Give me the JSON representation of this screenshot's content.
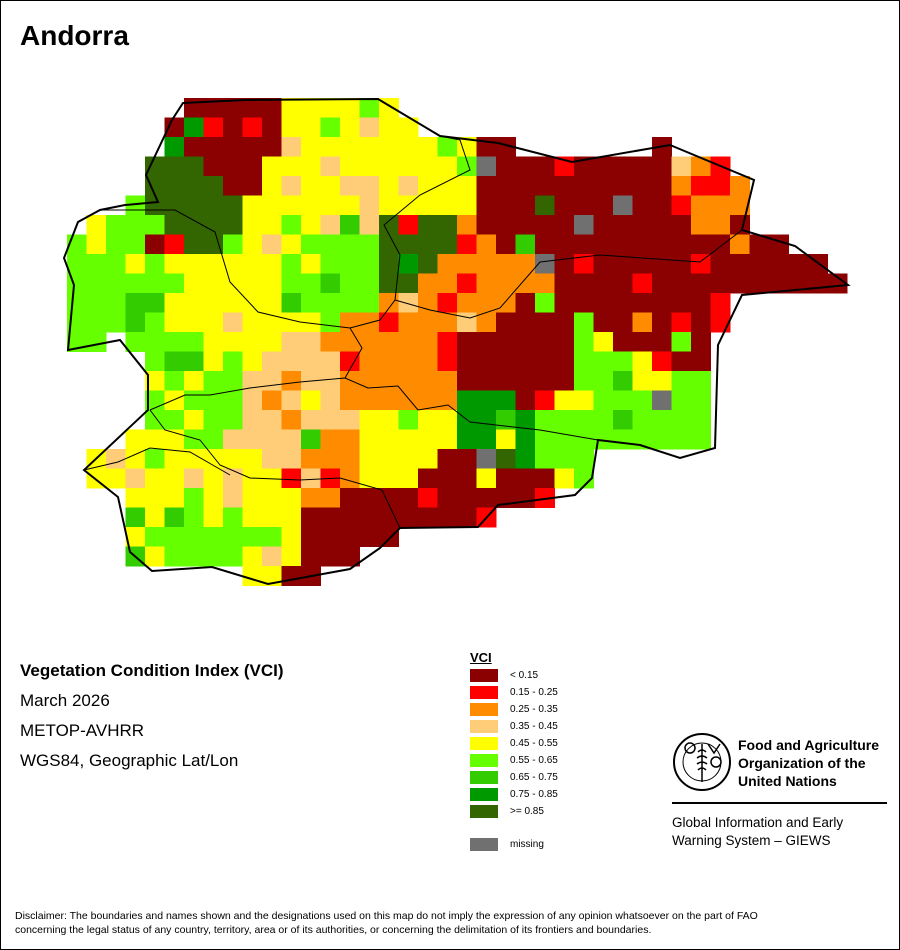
{
  "title": "Andorra",
  "meta": {
    "index_name": "Vegetation Condition Index (VCI)",
    "date": "March 2026",
    "sensor": "METOP-AVHRR",
    "projection": "WGS84, Geographic Lat/Lon"
  },
  "legend": {
    "title": "VCI",
    "items": [
      {
        "label": "< 0.15",
        "color": "#8b0000"
      },
      {
        "label": "0.15 - 0.25",
        "color": "#ff0000"
      },
      {
        "label": "0.25 - 0.35",
        "color": "#ff8c00"
      },
      {
        "label": "0.35 - 0.45",
        "color": "#ffcc77"
      },
      {
        "label": "0.45 - 0.55",
        "color": "#ffff00"
      },
      {
        "label": "0.55 - 0.65",
        "color": "#66ff00"
      },
      {
        "label": "0.65 - 0.75",
        "color": "#33cc00"
      },
      {
        "label": "0.75 - 0.85",
        "color": "#009900"
      },
      {
        "label": ">= 0.85",
        "color": "#336600"
      }
    ],
    "missing": {
      "label": "missing",
      "color": "#707070"
    }
  },
  "org": {
    "emblem_text": "FAO FIAT PANIS",
    "name": "Food and Agriculture\nOrganization of the\nUnited Nations",
    "program": "Global Information and Early\nWarning System – GIEWS"
  },
  "disclaimer": "Disclaimer: The boundaries and names shown and the designations used on this map do not imply the expression of any opinion whatsoever on the part of FAO\nconcerning the legal status of any country, territory, area or of its authorities, or concerning the delimitation of its frontiers and boundaries."
}
